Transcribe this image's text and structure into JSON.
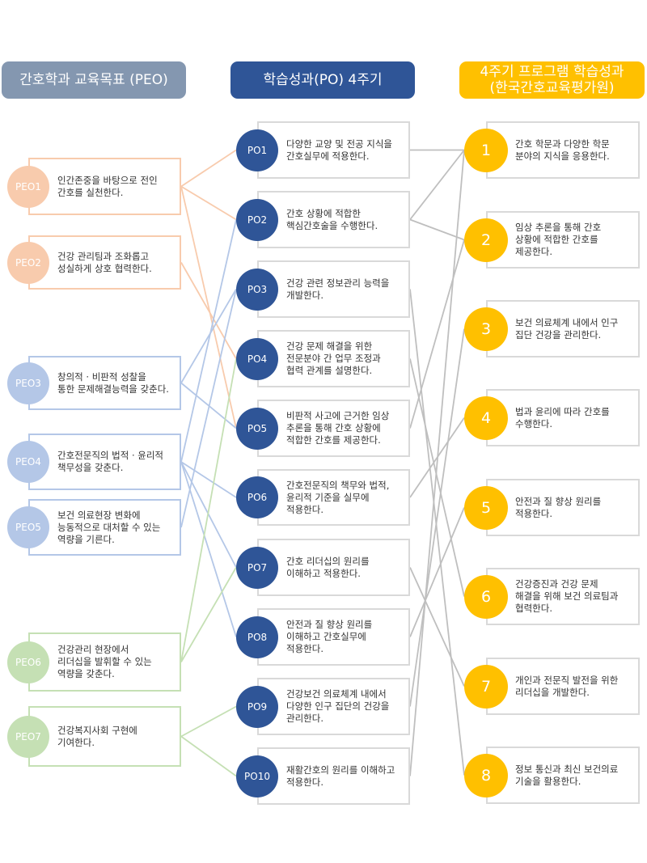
{
  "headers": {
    "peo": "간호학과 교육목표 (PEO)",
    "po": "학습성과(PO) 4주기",
    "outcome_line1": "4주기 프로그램 학습성과",
    "outcome_line2": "(한국간호교육평가원)"
  },
  "colors": {
    "peo_header": "#8497b0",
    "po_header": "#2f5597",
    "outcome_header": "#ffc000",
    "peo_orange": "#f8cbad",
    "peo_blue": "#b4c7e7",
    "peo_green": "#c5e0b4",
    "po_line": "#bfbfbf"
  },
  "peos": [
    {
      "id": "PEO1",
      "text": "인간존중을 바탕으로 전인\n간호를 실천한다.",
      "group": "orange"
    },
    {
      "id": "PEO2",
      "text": "건강 관리팀과 조화롭고\n성실하게 상호 협력한다.",
      "group": "orange"
    },
    {
      "id": "PEO3",
      "text": "창의적 · 비판적 성찰을\n통한 문제해결능력을 갖춘다.",
      "group": "blue"
    },
    {
      "id": "PEO4",
      "text": "간호전문직의 법적 · 윤리적\n책무성을 갖춘다.",
      "group": "blue"
    },
    {
      "id": "PEO5",
      "text": "보건 의료현장 변화에\n능동적으로 대처할 수 있는\n역량을 기른다.",
      "group": "blue"
    },
    {
      "id": "PEO6",
      "text": "건강관리 현장에서\n리더십을 발휘할 수 있는\n역량을 갖춘다.",
      "group": "green"
    },
    {
      "id": "PEO7",
      "text": "건강복지사회 구현에\n기여한다.",
      "group": "green"
    }
  ],
  "pos": [
    {
      "id": "PO1",
      "text": "다양한 교양 및 전공 지식을\n간호실무에 적용한다."
    },
    {
      "id": "PO2",
      "text": "간호 상황에 적합한\n핵심간호술을 수행한다."
    },
    {
      "id": "PO3",
      "text": "건강 관련 정보관리 능력을\n개발한다."
    },
    {
      "id": "PO4",
      "text": "건강 문제 해결을 위한\n전문분야 간 업무 조정과\n협력 관계를 설명한다."
    },
    {
      "id": "PO5",
      "text": "비판적 사고에 근거한 임상\n추론을 통해 간호 상황에\n적합한 간호를 제공한다."
    },
    {
      "id": "PO6",
      "text": "간호전문직의 책무와 법적,\n윤리적 기준을 실무에\n적용한다."
    },
    {
      "id": "PO7",
      "text": "간호 리더십의 원리를\n이해하고 적용한다."
    },
    {
      "id": "PO8",
      "text": "안전과 질 향상 원리를\n이해하고 간호실무에\n적용한다."
    },
    {
      "id": "PO9",
      "text": "건강보건 의료체계 내에서\n다양한 인구 집단의 건강을\n관리한다."
    },
    {
      "id": "PO10",
      "text": "재활간호의 원리를 이해하고\n적용한다."
    }
  ],
  "outcomes": [
    {
      "id": "1",
      "text": "간호 학문과 다양한 학문\n분야의 지식을 응용한다."
    },
    {
      "id": "2",
      "text": "임상 추론을 통해 간호\n상황에 적합한 간호를\n제공한다."
    },
    {
      "id": "3",
      "text": "보건 의료체계 내에서 인구\n집단 건강을 관리한다."
    },
    {
      "id": "4",
      "text": "법과 윤리에 따라 간호를\n수행한다."
    },
    {
      "id": "5",
      "text": "안전과 질 향상 원리를\n적용한다."
    },
    {
      "id": "6",
      "text": "건강증진과 건강 문제\n해결을 위해 보건 의료팀과\n협력한다."
    },
    {
      "id": "7",
      "text": "개인과 전문직 발전을 위한\n리더십을 개발한다."
    },
    {
      "id": "8",
      "text": "정보 통신과 최신 보건의료\n기술을 활용한다."
    }
  ],
  "peo_to_po": [
    [
      "PEO1",
      "PO1"
    ],
    [
      "PEO1",
      "PO2"
    ],
    [
      "PEO1",
      "PO5"
    ],
    [
      "PEO2",
      "PO4"
    ],
    [
      "PEO3",
      "PO3"
    ],
    [
      "PEO3",
      "PO5"
    ],
    [
      "PEO4",
      "PO2"
    ],
    [
      "PEO4",
      "PO6"
    ],
    [
      "PEO4",
      "PO7"
    ],
    [
      "PEO4",
      "PO8"
    ],
    [
      "PEO5",
      "PO3"
    ],
    [
      "PEO6",
      "PO4"
    ],
    [
      "PEO6",
      "PO7"
    ],
    [
      "PEO7",
      "PO9"
    ],
    [
      "PEO7",
      "PO10"
    ]
  ],
  "po_to_outcome": [
    [
      "PO1",
      "1"
    ],
    [
      "PO2",
      "1"
    ],
    [
      "PO2",
      "2"
    ],
    [
      "PO3",
      "8"
    ],
    [
      "PO4",
      "6"
    ],
    [
      "PO5",
      "2"
    ],
    [
      "PO6",
      "4"
    ],
    [
      "PO7",
      "7"
    ],
    [
      "PO8",
      "5"
    ],
    [
      "PO9",
      "3"
    ],
    [
      "PO10",
      "1"
    ]
  ]
}
